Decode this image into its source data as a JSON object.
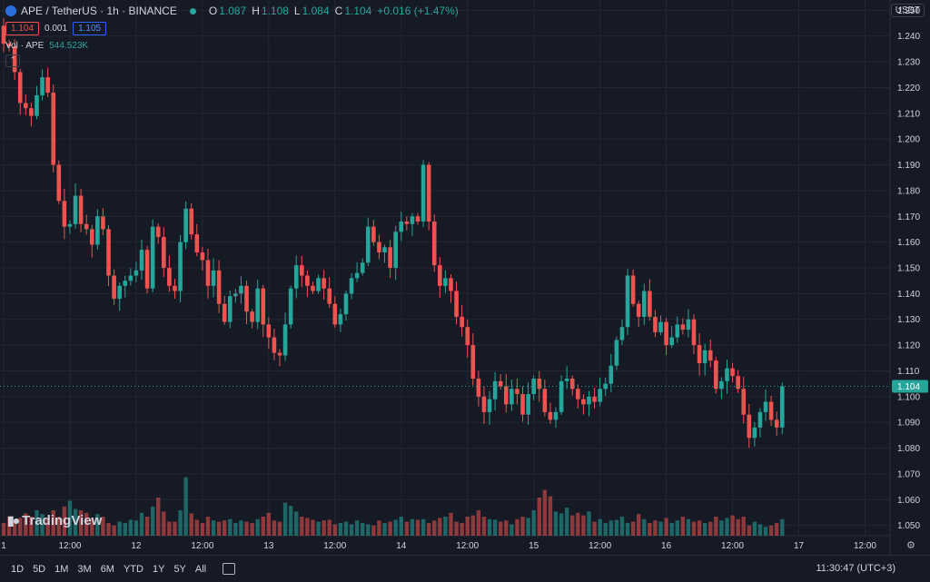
{
  "header": {
    "pair": "APE / TetherUS · 1h · BINANCE",
    "o_label": "O",
    "o": "1.087",
    "h_label": "H",
    "h": "1.108",
    "l_label": "L",
    "l": "1.084",
    "c_label": "C",
    "c": "1.104",
    "change": "+0.016 (+1.47%)"
  },
  "prices": {
    "sell": "1.104",
    "spread": "0.001",
    "buy": "1.105"
  },
  "volume": {
    "label": "Vol · APE",
    "value": "544.523K"
  },
  "currency": "USDT",
  "brand": "TradingView",
  "current_price_label": "1.104",
  "timeframes": [
    "1D",
    "5D",
    "1M",
    "3M",
    "6M",
    "YTD",
    "1Y",
    "5Y",
    "All"
  ],
  "clock": "11:30:47 (UTC+3)",
  "colors": {
    "up": "#26a69a",
    "down": "#ef5350",
    "bg": "#161a25",
    "grid": "#232735",
    "text": "#d1d4dc"
  },
  "chart_data": {
    "type": "candlestick",
    "y_ticks": [
      "1.250",
      "1.240",
      "1.230",
      "1.220",
      "1.210",
      "1.200",
      "1.190",
      "1.180",
      "1.170",
      "1.160",
      "1.150",
      "1.140",
      "1.130",
      "1.120",
      "1.110",
      "1.100",
      "1.090",
      "1.080",
      "1.070",
      "1.060",
      "1.050"
    ],
    "ylim": [
      1.046,
      1.254
    ],
    "x_ticks": [
      {
        "label": "1",
        "hour": 0
      },
      {
        "label": "12:00",
        "hour": 12
      },
      {
        "label": "12",
        "hour": 24
      },
      {
        "label": "12:00",
        "hour": 36
      },
      {
        "label": "13",
        "hour": 48
      },
      {
        "label": "12:00",
        "hour": 60
      },
      {
        "label": "14",
        "hour": 72
      },
      {
        "label": "12:00",
        "hour": 84
      },
      {
        "label": "15",
        "hour": 96
      },
      {
        "label": "12:00",
        "hour": 108
      },
      {
        "label": "16",
        "hour": 120
      },
      {
        "label": "12:00",
        "hour": 132
      },
      {
        "label": "17",
        "hour": 144
      },
      {
        "label": "12:00",
        "hour": 156
      }
    ],
    "current_price": 1.104,
    "closes": [
      1.237,
      1.236,
      1.226,
      1.214,
      1.212,
      1.209,
      1.217,
      1.224,
      1.218,
      1.19,
      1.176,
      1.166,
      1.167,
      1.178,
      1.167,
      1.165,
      1.159,
      1.17,
      1.165,
      1.147,
      1.138,
      1.143,
      1.145,
      1.147,
      1.149,
      1.157,
      1.142,
      1.166,
      1.162,
      1.15,
      1.143,
      1.141,
      1.16,
      1.173,
      1.163,
      1.156,
      1.153,
      1.143,
      1.149,
      1.136,
      1.129,
      1.139,
      1.14,
      1.143,
      1.133,
      1.129,
      1.142,
      1.128,
      1.123,
      1.117,
      1.116,
      1.128,
      1.142,
      1.151,
      1.147,
      1.143,
      1.141,
      1.146,
      1.142,
      1.136,
      1.128,
      1.132,
      1.14,
      1.146,
      1.148,
      1.152,
      1.166,
      1.16,
      1.156,
      1.158,
      1.15,
      1.164,
      1.168,
      1.167,
      1.17,
      1.168,
      1.19,
      1.168,
      1.151,
      1.143,
      1.146,
      1.141,
      1.131,
      1.127,
      1.12,
      1.107,
      1.1,
      1.094,
      1.099,
      1.106,
      1.104,
      1.097,
      1.103,
      1.101,
      1.093,
      1.101,
      1.107,
      1.103,
      1.094,
      1.091,
      1.094,
      1.106,
      1.107,
      1.103,
      1.099,
      1.097,
      1.1,
      1.098,
      1.103,
      1.105,
      1.112,
      1.122,
      1.127,
      1.147,
      1.136,
      1.131,
      1.141,
      1.131,
      1.125,
      1.129,
      1.12,
      1.123,
      1.128,
      1.126,
      1.13,
      1.12,
      1.113,
      1.118,
      1.114,
      1.103,
      1.106,
      1.111,
      1.108,
      1.103,
      1.093,
      1.084,
      1.088,
      1.094,
      1.098,
      1.091,
      1.088,
      1.104
    ],
    "volumes": [
      0.2,
      0.3,
      0.22,
      0.28,
      0.35,
      0.3,
      0.4,
      0.34,
      0.28,
      0.4,
      0.3,
      0.46,
      0.55,
      0.42,
      0.4,
      0.36,
      0.28,
      0.34,
      0.3,
      0.2,
      0.16,
      0.22,
      0.2,
      0.25,
      0.24,
      0.36,
      0.3,
      0.46,
      0.6,
      0.38,
      0.22,
      0.22,
      0.4,
      0.92,
      0.35,
      0.25,
      0.2,
      0.3,
      0.24,
      0.22,
      0.24,
      0.26,
      0.2,
      0.24,
      0.22,
      0.2,
      0.26,
      0.3,
      0.36,
      0.24,
      0.22,
      0.52,
      0.47,
      0.38,
      0.3,
      0.28,
      0.25,
      0.22,
      0.24,
      0.25,
      0.18,
      0.2,
      0.22,
      0.18,
      0.24,
      0.2,
      0.18,
      0.16,
      0.24,
      0.2,
      0.22,
      0.25,
      0.3,
      0.22,
      0.26,
      0.25,
      0.26,
      0.2,
      0.24,
      0.28,
      0.3,
      0.36,
      0.22,
      0.2,
      0.3,
      0.32,
      0.4,
      0.3,
      0.26,
      0.25,
      0.22,
      0.24,
      0.18,
      0.26,
      0.3,
      0.28,
      0.4,
      0.6,
      0.72,
      0.62,
      0.38,
      0.35,
      0.44,
      0.32,
      0.36,
      0.32,
      0.38,
      0.22,
      0.26,
      0.2,
      0.24,
      0.25,
      0.3,
      0.2,
      0.22,
      0.34,
      0.26,
      0.2,
      0.24,
      0.22,
      0.28,
      0.2,
      0.24,
      0.3,
      0.26,
      0.22,
      0.24,
      0.2,
      0.22,
      0.3,
      0.24,
      0.28,
      0.32,
      0.26,
      0.3,
      0.16,
      0.22,
      0.18,
      0.14,
      0.16,
      0.2,
      0.26
    ]
  }
}
